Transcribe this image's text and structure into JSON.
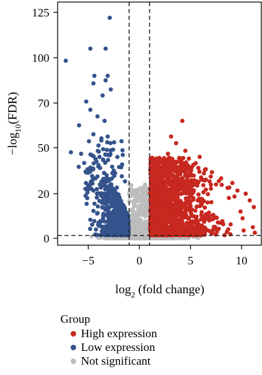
{
  "chart_data": {
    "type": "scatter",
    "title": "",
    "xlabel": {
      "main": "log",
      "sub": "2",
      "rest": " (fold change)"
    },
    "ylabel": {
      "main": "−log",
      "sub": "10",
      "rest": "(FDR)"
    },
    "xlim": [
      -8,
      12
    ],
    "ylim": [
      -7,
      132
    ],
    "x_ticks": [
      -5,
      0,
      5,
      10
    ],
    "x_tick_labels": [
      "−5",
      "0",
      "5",
      "10"
    ],
    "y_ticks": [
      0,
      20,
      50,
      70,
      100,
      125
    ],
    "y_tick_labels": [
      "0",
      "20",
      "50",
      "70",
      "100",
      "125"
    ],
    "y_scale": "piecewise",
    "y_scale_breaks": [
      [
        0,
        20,
        50,
        70,
        100,
        125
      ]
    ],
    "vlines": [
      -1,
      1
    ],
    "hline": 1.3,
    "grid": false,
    "legend": {
      "title": "Group",
      "position": "bottom-left",
      "entries": [
        "High expression",
        "Low expression",
        "Not significant"
      ]
    },
    "series": [
      {
        "name": "High expression",
        "color": "#c7281f",
        "approximate_count": 2500,
        "x_range": [
          1,
          11.5
        ],
        "y_range": [
          1.3,
          62
        ],
        "points": [
          [
            4.2,
            62
          ],
          [
            3.1,
            55
          ],
          [
            3.6,
            52
          ],
          [
            4.5,
            48
          ],
          [
            2.8,
            46
          ],
          [
            5.9,
            44
          ],
          [
            3.9,
            43
          ],
          [
            2.2,
            41
          ],
          [
            3.3,
            40
          ],
          [
            4.8,
            38
          ],
          [
            6.5,
            36
          ],
          [
            7.1,
            34
          ],
          [
            2.5,
            33
          ],
          [
            5.2,
            32
          ],
          [
            8.0,
            30
          ],
          [
            6.2,
            29
          ],
          [
            9.1,
            27
          ],
          [
            7.5,
            26
          ],
          [
            8.8,
            24
          ],
          [
            9.6,
            22
          ],
          [
            10.4,
            20
          ],
          [
            10.8,
            17
          ],
          [
            11.2,
            14
          ],
          [
            9.9,
            12
          ],
          [
            10.1,
            9
          ],
          [
            11.1,
            5
          ],
          [
            11.3,
            2.5
          ],
          [
            10.2,
            3.5
          ],
          [
            8.7,
            4
          ],
          [
            7.9,
            7
          ],
          [
            6.9,
            10
          ],
          [
            1.2,
            22
          ],
          [
            1.5,
            30
          ],
          [
            1.8,
            36
          ]
        ]
      },
      {
        "name": "Low expression",
        "color": "#34538c",
        "approximate_count": 1500,
        "x_range": [
          -7.3,
          -1
        ],
        "y_range": [
          1.3,
          122
        ],
        "points": [
          [
            -2.9,
            122
          ],
          [
            -3.3,
            105
          ],
          [
            -4.8,
            105
          ],
          [
            -7.2,
            98
          ],
          [
            -4.4,
            88
          ],
          [
            -3.1,
            88
          ],
          [
            -3.3,
            85
          ],
          [
            -4.5,
            83
          ],
          [
            -2.8,
            79
          ],
          [
            -3.6,
            75
          ],
          [
            -5.2,
            71
          ],
          [
            -4.8,
            67
          ],
          [
            -4.1,
            64
          ],
          [
            -3.4,
            62
          ],
          [
            -5.9,
            60
          ],
          [
            -4.5,
            56
          ],
          [
            -3.1,
            55
          ],
          [
            -4.0,
            51
          ],
          [
            -6.7,
            47
          ],
          [
            -5.7,
            46
          ],
          [
            -2.9,
            45
          ],
          [
            -3.9,
            44
          ],
          [
            -5.4,
            40
          ],
          [
            -4.8,
            37
          ],
          [
            -2.5,
            35
          ],
          [
            -3.2,
            32
          ],
          [
            -4.3,
            30
          ],
          [
            -3.7,
            28
          ],
          [
            -1.4,
            28
          ],
          [
            -5.0,
            25
          ],
          [
            -2.2,
            24
          ],
          [
            -4.5,
            22
          ],
          [
            -3.6,
            20
          ],
          [
            -5.1,
            18
          ],
          [
            -2.8,
            16
          ],
          [
            -1.9,
            12
          ],
          [
            -3.0,
            9
          ],
          [
            -4.0,
            7
          ],
          [
            -2.4,
            4
          ]
        ]
      },
      {
        "name": "Not significant",
        "color": "#bdbdbd",
        "approximate_count": 4000,
        "x_range": [
          -3,
          7
        ],
        "y_range": [
          0,
          30
        ],
        "points": [
          [
            0.2,
            30
          ],
          [
            0.6,
            22
          ],
          [
            -0.4,
            17
          ],
          [
            0.5,
            12
          ],
          [
            -0.7,
            10
          ],
          [
            0.8,
            8
          ],
          [
            -0.3,
            5
          ],
          [
            0.1,
            3
          ],
          [
            2.5,
            1
          ],
          [
            4.0,
            0.8
          ],
          [
            -2.0,
            1.0
          ],
          [
            6.0,
            0.6
          ]
        ]
      }
    ]
  }
}
